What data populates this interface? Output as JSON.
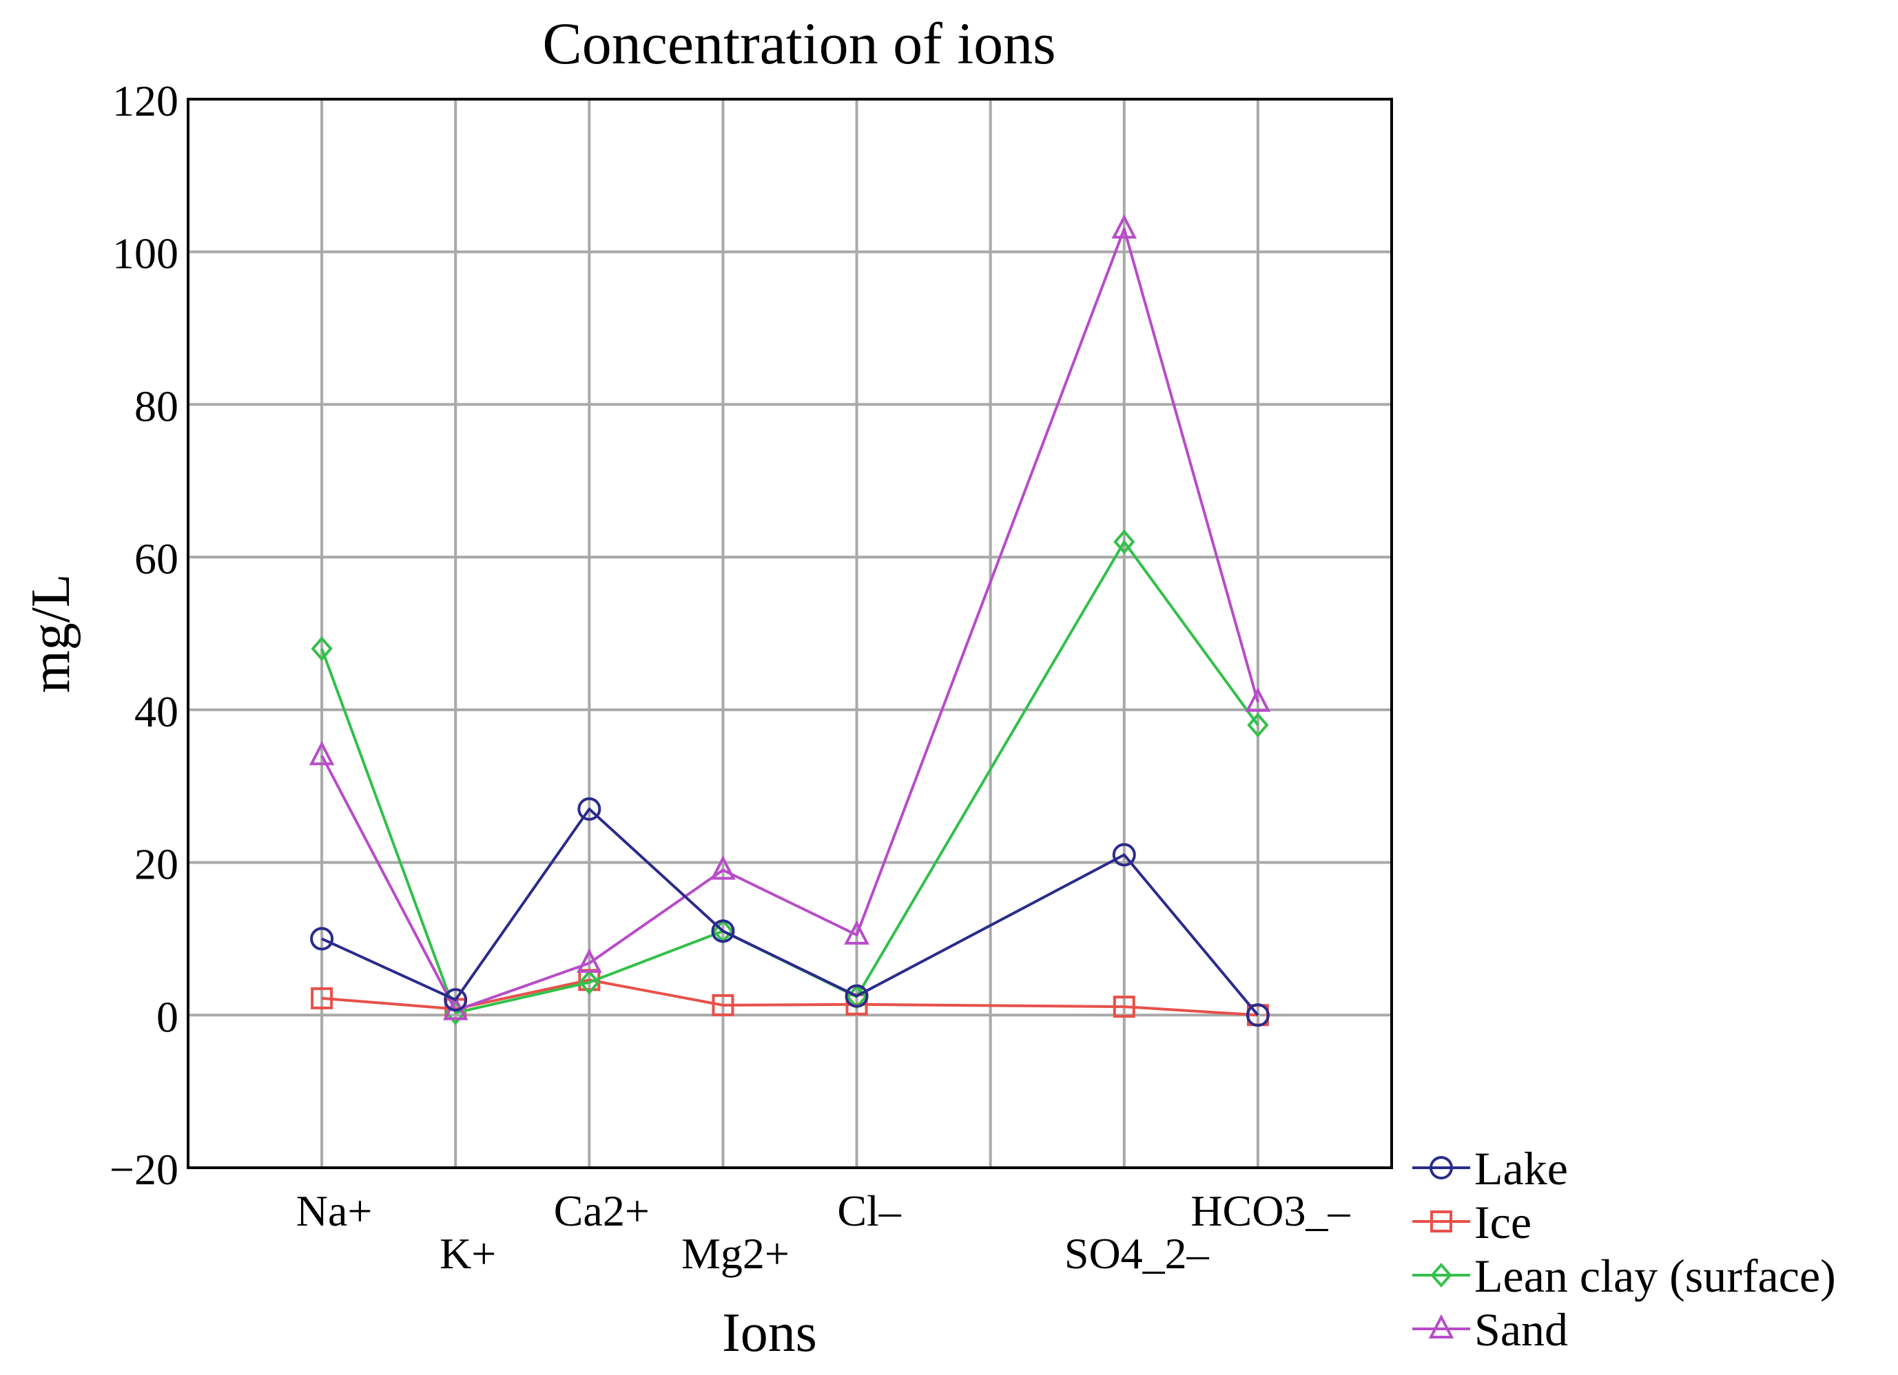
{
  "chart_data": {
    "type": "line",
    "title": "Concentration of ions",
    "xlabel": "Ions",
    "ylabel": "mg/L",
    "ylim": [
      -20,
      120
    ],
    "yticks": [
      -20,
      0,
      20,
      40,
      60,
      80,
      100,
      120
    ],
    "ytick_labels": [
      "−20",
      "0",
      "20",
      "40",
      "60",
      "80",
      "100",
      "120"
    ],
    "grid": true,
    "legend_position": "outside-bottom-right",
    "x_positions": [
      1,
      2,
      3,
      4,
      5,
      7,
      8
    ],
    "categories": [
      "Na+",
      "K+",
      "Ca2+",
      "Mg2+",
      "Cl–",
      "SO4_2–",
      "HCO3_–"
    ],
    "series": [
      {
        "name": "Lake",
        "color": "#2b2b8c",
        "marker": "circle",
        "values": [
          10,
          2,
          27,
          11,
          2.5,
          21,
          0
        ]
      },
      {
        "name": "Ice",
        "color": "#e8504a",
        "marker": "square",
        "values": [
          2.2,
          0.8,
          4.6,
          1.3,
          1.4,
          1.1,
          0
        ]
      },
      {
        "name": "Lean clay (surface)",
        "color": "#33c04a",
        "marker": "diamond",
        "values": [
          48,
          0.3,
          4.3,
          11,
          2.4,
          62,
          38
        ]
      },
      {
        "name": "Sand",
        "color": "#b84cc9",
        "marker": "triangle",
        "values": [
          34,
          0.6,
          6.8,
          19,
          10.5,
          103,
          41
        ]
      }
    ]
  }
}
